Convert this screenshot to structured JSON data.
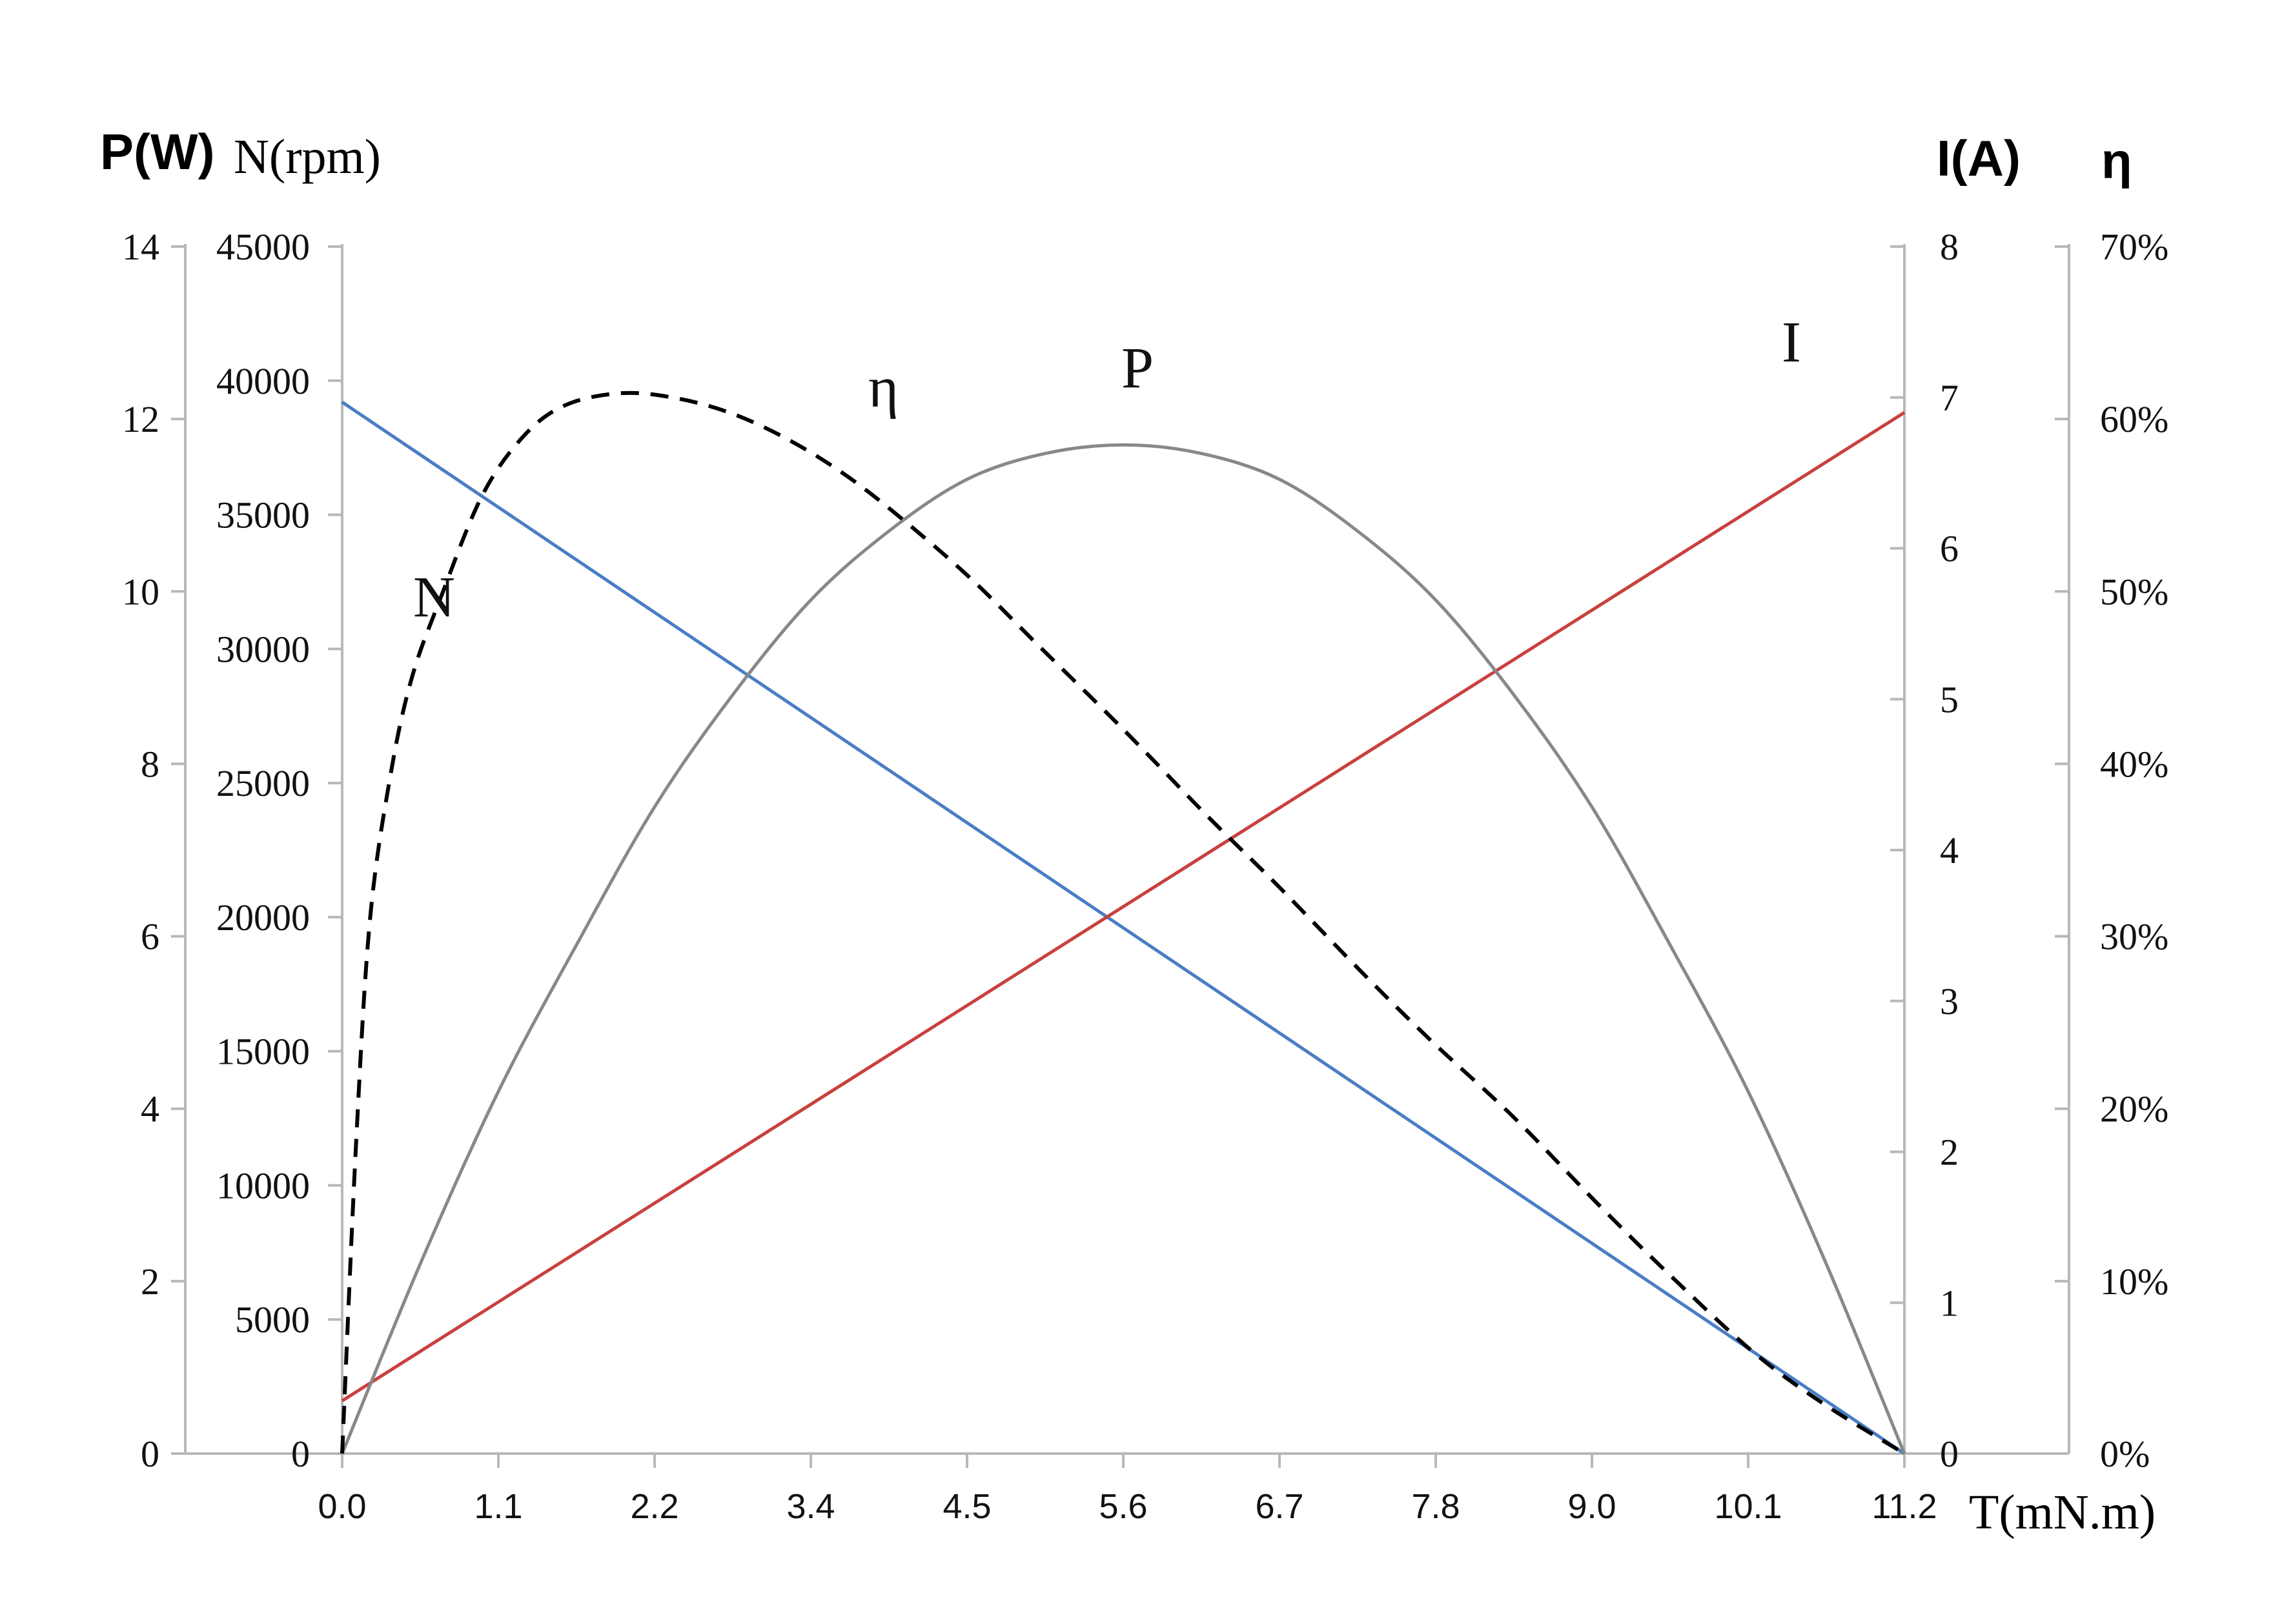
{
  "chart_data": {
    "type": "line",
    "axis_titles": {
      "power": "P(W)",
      "speed": "N(rpm)",
      "current": "I(A)",
      "efficiency": "η",
      "torque": "T(mN.m)"
    },
    "x": {
      "ticks": [
        "0.0",
        "1.1",
        "2.2",
        "3.4",
        "4.5",
        "5.6",
        "6.7",
        "7.8",
        "9.0",
        "10.1",
        "11.2"
      ],
      "range": [
        0,
        11.2
      ]
    },
    "axes": {
      "power": {
        "ticks": [
          "0",
          "2",
          "4",
          "6",
          "8",
          "10",
          "12",
          "14"
        ],
        "range": [
          0,
          14
        ]
      },
      "speed": {
        "ticks": [
          "0",
          "5000",
          "10000",
          "15000",
          "20000",
          "25000",
          "30000",
          "35000",
          "40000",
          "45000"
        ],
        "range": [
          0,
          45000
        ]
      },
      "current": {
        "ticks": [
          "0",
          "1",
          "2",
          "3",
          "4",
          "5",
          "6",
          "7",
          "8"
        ],
        "range": [
          0,
          8
        ]
      },
      "efficiency": {
        "ticks": [
          "0%",
          "10%",
          "20%",
          "30%",
          "40%",
          "50%",
          "60%",
          "70%"
        ],
        "range": [
          0,
          70
        ]
      }
    },
    "series": [
      {
        "name": "N",
        "axis": "speed",
        "color": "#4a7dc4",
        "style": "solid",
        "x": [
          0,
          11.2
        ],
        "values": [
          39200,
          0
        ]
      },
      {
        "name": "I",
        "axis": "current",
        "color": "#c9403e",
        "style": "solid",
        "x": [
          0,
          11.2
        ],
        "values": [
          0.35,
          6.9
        ]
      },
      {
        "name": "P",
        "axis": "power",
        "color": "#888888",
        "style": "solid",
        "x": [
          0,
          0.56,
          1.12,
          1.68,
          2.24,
          2.8,
          3.36,
          3.92,
          4.48,
          5.04,
          5.6,
          6.16,
          6.72,
          7.28,
          7.84,
          8.4,
          8.96,
          9.52,
          10.08,
          10.64,
          11.2
        ],
        "values": [
          0,
          2.2,
          4.2,
          5.9,
          7.5,
          8.8,
          9.9,
          10.7,
          11.3,
          11.6,
          11.7,
          11.6,
          11.3,
          10.7,
          9.9,
          8.8,
          7.5,
          5.9,
          4.2,
          2.2,
          0
        ]
      },
      {
        "name": "η",
        "axis": "efficiency",
        "color": "#000000",
        "style": "dashed",
        "x": [
          0,
          0.1,
          0.2,
          0.35,
          0.5,
          0.7,
          1.0,
          1.3,
          1.6,
          2.0,
          2.4,
          2.8,
          3.2,
          3.6,
          4.0,
          4.5,
          5.0,
          5.6,
          6.2,
          6.7,
          7.3,
          7.8,
          8.4,
          9.0,
          9.5,
          10.1,
          10.6,
          11.2
        ],
        "values": [
          0,
          18,
          31,
          39.5,
          45,
          49.5,
          55.5,
          59,
          60.8,
          61.5,
          61.2,
          60.3,
          58.8,
          56.8,
          54.3,
          50.8,
          46.8,
          42,
          37,
          33,
          28,
          24,
          19.5,
          14.5,
          10.5,
          6,
          3,
          0
        ]
      }
    ]
  }
}
